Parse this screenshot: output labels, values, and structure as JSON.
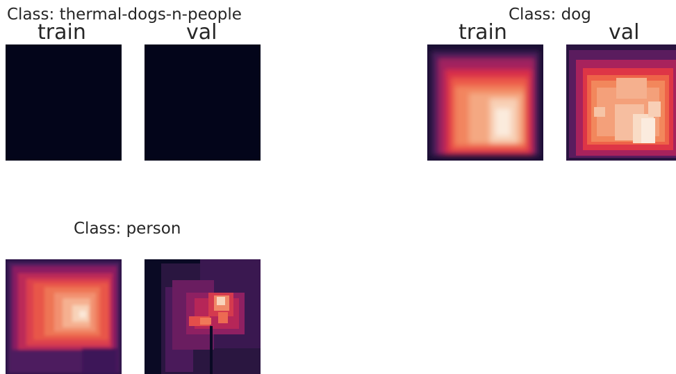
{
  "chart_data": [
    {
      "type": "heatmap",
      "title": "Class: thermal-dogs-n-people",
      "panels": [
        {
          "label": "train",
          "intensity": 0.0
        },
        {
          "label": "val",
          "intensity": 0.0
        }
      ]
    },
    {
      "type": "heatmap",
      "title": "Class: dog",
      "panels": [
        {
          "label": "train",
          "intensity": 0.85
        },
        {
          "label": "val",
          "intensity": 0.85
        }
      ]
    },
    {
      "type": "heatmap",
      "title": "Class: person",
      "panels": [
        {
          "label": "",
          "intensity": 0.75
        },
        {
          "label": "",
          "intensity": 0.55
        }
      ]
    }
  ],
  "colors": {
    "background_dark": "#03051a",
    "colormap": "rocket"
  }
}
